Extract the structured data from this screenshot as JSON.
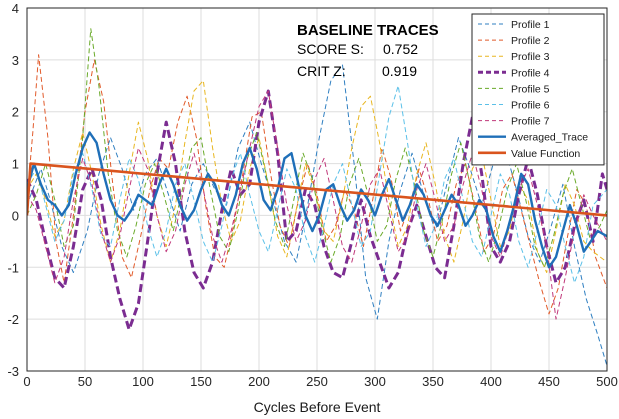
{
  "chart_data": {
    "type": "line",
    "xlabel": "Cycles Before Event",
    "ylabel": "",
    "xlim": [
      0,
      500
    ],
    "ylim": [
      -3,
      4
    ],
    "xticks": [
      0,
      50,
      100,
      150,
      200,
      250,
      300,
      350,
      400,
      450,
      500
    ],
    "yticks": [
      -3,
      -2,
      -1,
      0,
      1,
      2,
      3,
      4
    ],
    "grid": true,
    "legend_position": "top-right",
    "annotation": {
      "title": "BASELINE TRACES",
      "score_label": "SCORE S:",
      "score_value": "0.752",
      "crit_label": "CRIT Z:",
      "crit_value": "0.919"
    },
    "series": [
      {
        "name": "Profile 1",
        "color": "#2f7fc1",
        "style": "dashed",
        "width": 1,
        "x": [
          0,
          5,
          12,
          20,
          30,
          40,
          52,
          62,
          72,
          82,
          92,
          102,
          112,
          122,
          132,
          142,
          152,
          162,
          172,
          182,
          192,
          202,
          212,
          222,
          232,
          242,
          252,
          262,
          272,
          282,
          292,
          302,
          312,
          322,
          332,
          342,
          352,
          362,
          372,
          382,
          392,
          402,
          412,
          422,
          432,
          442,
          452,
          462,
          472,
          482,
          492,
          500
        ],
        "y": [
          0.2,
          0.5,
          0.9,
          0.3,
          -0.6,
          -1.1,
          -0.3,
          0.8,
          1.5,
          0.9,
          0.1,
          0.8,
          1.1,
          0.4,
          -0.3,
          0.6,
          1.0,
          0.5,
          0.2,
          1.3,
          1.8,
          1.0,
          0.3,
          -0.5,
          -0.9,
          0.2,
          1.5,
          2.6,
          2.9,
          1.0,
          -1.2,
          -2.0,
          -0.5,
          0.5,
          1.2,
          0.4,
          -0.3,
          0.6,
          1.5,
          0.9,
          0.2,
          1.0,
          1.3,
          0.5,
          -0.4,
          -0.9,
          -0.2,
          0.6,
          -0.6,
          -1.6,
          -2.3,
          -2.9
        ]
      },
      {
        "name": "Profile 2",
        "color": "#e15a2a",
        "style": "dashed",
        "width": 1,
        "x": [
          0,
          5,
          10,
          18,
          25,
          32,
          40,
          50,
          58,
          66,
          74,
          82,
          90,
          98,
          106,
          114,
          122,
          130,
          138,
          146,
          154,
          162,
          170,
          178,
          186,
          194,
          202,
          210,
          218,
          226,
          234,
          242,
          250,
          258,
          266,
          274,
          282,
          290,
          298,
          306,
          314,
          322,
          330,
          338,
          346,
          354,
          362,
          370,
          378,
          386,
          394,
          402,
          410,
          418,
          426,
          434,
          442,
          450,
          458,
          466,
          474,
          482,
          490,
          500
        ],
        "y": [
          0.3,
          1.6,
          3.1,
          1.5,
          -0.5,
          -1.3,
          0.0,
          2.0,
          3.0,
          2.2,
          0.6,
          -0.8,
          -1.2,
          -0.4,
          0.5,
          1.1,
          0.9,
          1.8,
          2.3,
          1.5,
          0.2,
          -0.8,
          -1.0,
          -0.2,
          0.8,
          1.9,
          2.0,
          0.8,
          -0.2,
          -0.6,
          0.3,
          1.0,
          0.4,
          -0.5,
          -0.2,
          0.5,
          0.1,
          -0.6,
          0.3,
          1.3,
          0.7,
          -0.3,
          0.2,
          0.9,
          0.3,
          -0.5,
          -0.2,
          0.6,
          1.0,
          0.2,
          -0.7,
          -0.4,
          0.5,
          0.8,
          0.1,
          -0.6,
          -1.3,
          -1.9,
          -1.4,
          -0.4,
          0.5,
          0.2,
          -0.8,
          -1.4
        ]
      },
      {
        "name": "Profile 3",
        "color": "#e8b620",
        "style": "dashed",
        "width": 1,
        "x": [
          0,
          8,
          16,
          24,
          32,
          40,
          48,
          56,
          64,
          72,
          80,
          88,
          96,
          104,
          112,
          120,
          128,
          136,
          144,
          152,
          160,
          168,
          176,
          184,
          192,
          200,
          208,
          216,
          224,
          232,
          240,
          248,
          256,
          264,
          272,
          280,
          288,
          296,
          304,
          312,
          320,
          328,
          336,
          344,
          352,
          360,
          368,
          376,
          384,
          392,
          400,
          408,
          416,
          424,
          432,
          440,
          448,
          456,
          464,
          472,
          480,
          488,
          500
        ],
        "y": [
          0.5,
          0.8,
          0.3,
          -0.4,
          -0.1,
          0.9,
          1.6,
          0.8,
          -0.2,
          -0.9,
          -0.3,
          0.8,
          1.8,
          1.1,
          0.0,
          -0.6,
          0.2,
          1.4,
          2.4,
          2.6,
          1.3,
          0.2,
          -0.5,
          -0.1,
          0.9,
          1.5,
          0.6,
          -0.4,
          -0.8,
          0.1,
          1.0,
          0.5,
          -0.3,
          -0.5,
          0.3,
          1.3,
          2.1,
          2.3,
          1.4,
          0.3,
          -0.6,
          -0.2,
          0.8,
          1.4,
          0.6,
          -0.4,
          -0.9,
          -0.1,
          0.9,
          1.2,
          0.3,
          -0.6,
          -0.3,
          0.6,
          0.3,
          -0.7,
          -1.1,
          -0.3,
          0.6,
          0.2,
          -0.5,
          -0.7,
          -0.9
        ]
      },
      {
        "name": "Profile 4",
        "color": "#7b2c91",
        "style": "thickdash",
        "width": 3,
        "x": [
          0,
          8,
          16,
          24,
          32,
          40,
          48,
          56,
          64,
          72,
          80,
          88,
          96,
          104,
          112,
          120,
          128,
          136,
          144,
          152,
          160,
          168,
          176,
          184,
          192,
          200,
          208,
          216,
          224,
          232,
          240,
          248,
          256,
          264,
          272,
          280,
          288,
          296,
          304,
          312,
          320,
          328,
          336,
          344,
          352,
          360,
          368,
          376,
          384,
          392,
          400,
          408,
          416,
          424,
          432,
          440,
          448,
          456,
          464,
          472,
          480,
          488,
          496,
          500
        ],
        "y": [
          0.7,
          0.3,
          -0.5,
          -1.2,
          -1.4,
          -0.6,
          0.5,
          0.9,
          0.3,
          -0.8,
          -1.6,
          -2.2,
          -1.7,
          -0.5,
          0.8,
          1.8,
          1.0,
          -0.3,
          -1.1,
          -1.4,
          -0.9,
          0.1,
          0.9,
          0.4,
          0.6,
          1.8,
          2.4,
          1.2,
          -0.5,
          -0.3,
          0.5,
          0.2,
          -0.6,
          -1.1,
          -1.2,
          -0.5,
          0.3,
          -0.4,
          -0.9,
          -1.4,
          -1.1,
          -0.3,
          0.2,
          -0.4,
          -1.0,
          -1.2,
          -0.2,
          1.0,
          1.9,
          0.8,
          -0.6,
          -0.9,
          -0.5,
          0.4,
          1.1,
          0.4,
          -0.6,
          -1.3,
          -1.0,
          -0.2,
          0.3,
          -0.5,
          0.8,
          0.5
        ]
      },
      {
        "name": "Profile 5",
        "color": "#6aaa2a",
        "style": "dashed",
        "width": 1,
        "x": [
          0,
          8,
          16,
          24,
          32,
          40,
          48,
          55,
          62,
          70,
          78,
          86,
          94,
          102,
          110,
          118,
          126,
          134,
          142,
          150,
          158,
          166,
          174,
          182,
          190,
          198,
          206,
          214,
          222,
          230,
          238,
          246,
          254,
          262,
          270,
          278,
          286,
          294,
          302,
          310,
          318,
          326,
          334,
          342,
          350,
          358,
          366,
          374,
          382,
          390,
          398,
          406,
          414,
          422,
          430,
          438,
          446,
          454,
          462,
          470,
          478,
          486,
          494,
          500
        ],
        "y": [
          0.0,
          0.4,
          1.0,
          0.3,
          -0.6,
          -0.2,
          1.5,
          3.6,
          2.5,
          0.8,
          -0.3,
          -0.8,
          -0.2,
          0.6,
          1.0,
          0.4,
          -0.3,
          0.5,
          1.3,
          1.5,
          0.5,
          -0.4,
          -0.7,
          0.1,
          1.1,
          1.6,
          0.8,
          -0.1,
          -0.6,
          0.3,
          1.2,
          0.7,
          -0.2,
          -0.9,
          -0.4,
          0.6,
          1.1,
          0.4,
          -0.5,
          -0.2,
          0.7,
          1.3,
          0.6,
          -0.3,
          -0.8,
          -0.1,
          0.8,
          1.4,
          0.6,
          -0.4,
          -0.9,
          -0.3,
          0.5,
          1.0,
          0.3,
          -0.6,
          -1.0,
          -0.4,
          0.4,
          0.9,
          0.2,
          -0.5,
          -0.2,
          0.1
        ]
      },
      {
        "name": "Profile 6",
        "color": "#5bc0e8",
        "style": "dashed",
        "width": 1,
        "x": [
          0,
          8,
          16,
          24,
          32,
          40,
          48,
          56,
          64,
          72,
          80,
          88,
          96,
          104,
          112,
          120,
          128,
          136,
          144,
          152,
          160,
          168,
          176,
          184,
          192,
          200,
          208,
          216,
          224,
          232,
          240,
          248,
          256,
          264,
          272,
          280,
          288,
          296,
          304,
          312,
          320,
          328,
          336,
          344,
          352,
          360,
          368,
          376,
          384,
          392,
          400,
          408,
          416,
          424,
          432,
          440,
          448,
          456,
          464,
          472,
          480,
          488,
          500
        ],
        "y": [
          0.6,
          0.9,
          0.2,
          -0.5,
          -0.1,
          0.8,
          1.2,
          0.5,
          -0.4,
          -0.6,
          0.3,
          1.1,
          0.7,
          -0.2,
          -0.8,
          -0.3,
          0.6,
          1.0,
          0.3,
          -0.5,
          -0.9,
          -0.2,
          0.7,
          1.2,
          0.4,
          -0.3,
          -0.7,
          0.1,
          0.9,
          0.5,
          -0.4,
          -0.9,
          -0.2,
          0.6,
          1.0,
          0.2,
          -0.6,
          -0.3,
          0.8,
          1.9,
          2.5,
          1.4,
          0.2,
          -0.6,
          -0.2,
          0.7,
          1.1,
          0.3,
          -0.5,
          -0.8,
          0.0,
          0.8,
          0.4,
          -0.5,
          -1.0,
          -0.3,
          0.5,
          0.2,
          -0.6,
          -1.3,
          -0.8,
          0.2,
          0.5
        ]
      },
      {
        "name": "Profile 7",
        "color": "#c0387a",
        "style": "dashed",
        "width": 1,
        "x": [
          0,
          8,
          16,
          24,
          32,
          40,
          48,
          56,
          64,
          72,
          80,
          88,
          96,
          104,
          112,
          120,
          128,
          136,
          144,
          152,
          160,
          168,
          176,
          184,
          192,
          200,
          208,
          216,
          224,
          232,
          240,
          248,
          256,
          264,
          272,
          280,
          288,
          296,
          304,
          312,
          320,
          328,
          336,
          344,
          352,
          360,
          368,
          376,
          384,
          392,
          400,
          408,
          416,
          424,
          432,
          440,
          448,
          456,
          464,
          472,
          480,
          488,
          500
        ],
        "y": [
          0.4,
          0.1,
          -0.6,
          -1.3,
          -0.8,
          0.3,
          1.1,
          0.6,
          -0.3,
          -0.9,
          -0.4,
          0.5,
          1.3,
          0.9,
          0.0,
          -0.7,
          -0.3,
          0.6,
          1.2,
          0.5,
          -0.4,
          -0.9,
          -0.3,
          0.5,
          1.3,
          2.1,
          2.4,
          1.3,
          0.2,
          -0.5,
          -0.1,
          0.7,
          1.1,
          0.3,
          -0.6,
          -0.9,
          -0.2,
          0.6,
          0.9,
          0.1,
          -0.7,
          -0.4,
          0.5,
          1.0,
          0.3,
          -0.5,
          -0.2,
          0.6,
          1.2,
          0.5,
          -0.4,
          -0.8,
          -0.2,
          0.5,
          0.9,
          0.2,
          -0.6,
          -2.0,
          -1.2,
          -0.3,
          0.4,
          0.0,
          -0.5
        ]
      },
      {
        "name": "Averaged_Trace",
        "color": "#1f6fb8",
        "style": "solid",
        "width": 2.4,
        "x": [
          0,
          6,
          12,
          18,
          24,
          30,
          36,
          42,
          48,
          54,
          60,
          66,
          72,
          78,
          84,
          90,
          96,
          102,
          108,
          114,
          120,
          126,
          132,
          138,
          144,
          150,
          156,
          162,
          168,
          174,
          180,
          186,
          192,
          198,
          204,
          210,
          216,
          222,
          228,
          234,
          240,
          246,
          252,
          258,
          264,
          270,
          276,
          282,
          288,
          294,
          300,
          306,
          312,
          318,
          324,
          330,
          336,
          342,
          348,
          354,
          360,
          366,
          372,
          378,
          384,
          390,
          396,
          402,
          408,
          414,
          420,
          426,
          432,
          438,
          444,
          450,
          456,
          462,
          468,
          474,
          480,
          486,
          492,
          500
        ],
        "y": [
          0.5,
          1.0,
          0.6,
          0.3,
          0.2,
          0.0,
          0.2,
          0.8,
          1.3,
          1.6,
          1.4,
          0.8,
          0.3,
          0.0,
          -0.1,
          0.1,
          0.4,
          0.3,
          0.2,
          0.6,
          0.9,
          0.6,
          0.2,
          -0.1,
          0.1,
          0.5,
          0.8,
          0.6,
          0.2,
          0.0,
          0.4,
          1.0,
          1.3,
          0.9,
          0.3,
          0.1,
          0.5,
          1.1,
          1.2,
          0.6,
          0.0,
          -0.3,
          0.0,
          0.5,
          0.6,
          0.2,
          -0.1,
          0.1,
          0.5,
          0.3,
          0.0,
          0.4,
          0.7,
          0.3,
          -0.1,
          0.2,
          0.6,
          0.4,
          0.0,
          -0.2,
          0.1,
          0.4,
          0.2,
          -0.2,
          0.0,
          0.3,
          0.1,
          -0.4,
          -0.7,
          -0.3,
          0.2,
          0.8,
          0.6,
          -0.1,
          -0.6,
          -1.0,
          -0.8,
          -0.3,
          0.2,
          -0.2,
          -0.7,
          -0.5,
          -0.3,
          -0.4
        ]
      },
      {
        "name": "Value Function",
        "color": "#d9541e",
        "style": "solid",
        "width": 2.6,
        "x": [
          0,
          3,
          500
        ],
        "y": [
          0.0,
          1.0,
          0.0
        ]
      }
    ]
  }
}
